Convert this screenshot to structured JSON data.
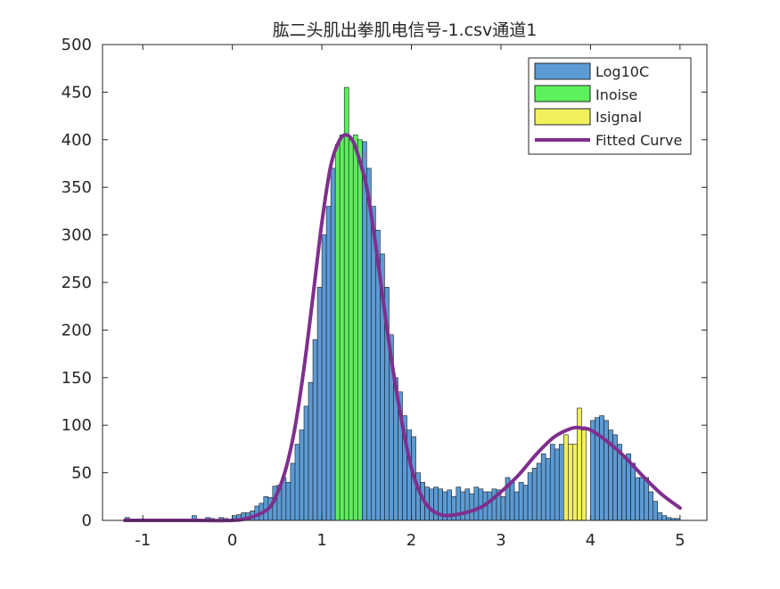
{
  "chart_data": {
    "type": "bar",
    "title": "肱二头肌出拳肌电信号-1.csv通道1",
    "xlabel": "",
    "ylabel": "",
    "xlim": [
      -1.45,
      5.3
    ],
    "ylim": [
      0,
      500
    ],
    "xticks": [
      -1,
      0,
      1,
      2,
      3,
      4,
      5
    ],
    "yticks": [
      0,
      50,
      100,
      150,
      200,
      250,
      300,
      350,
      400,
      450,
      500
    ],
    "grid": false,
    "legend_position": "top-right",
    "bin_width": 0.05,
    "series": [
      {
        "name": "Log10C",
        "color": "#5b9bd5",
        "x": [
          -1.2,
          -0.45,
          -0.3,
          -0.25,
          -0.15,
          -0.1,
          0.0,
          0.05,
          0.1,
          0.15,
          0.2,
          0.25,
          0.3,
          0.35,
          0.4,
          0.45,
          0.5,
          0.55,
          0.6,
          0.65,
          0.7,
          0.75,
          0.8,
          0.85,
          0.9,
          0.95,
          1.0,
          1.05,
          1.1,
          1.45,
          1.5,
          1.55,
          1.6,
          1.65,
          1.7,
          1.75,
          1.8,
          1.85,
          1.9,
          1.95,
          2.0,
          2.05,
          2.1,
          2.15,
          2.2,
          2.25,
          2.3,
          2.35,
          2.4,
          2.45,
          2.5,
          2.55,
          2.6,
          2.65,
          2.7,
          2.75,
          2.8,
          2.85,
          2.9,
          2.95,
          3.0,
          3.05,
          3.1,
          3.15,
          3.2,
          3.25,
          3.3,
          3.35,
          3.4,
          3.45,
          3.5,
          3.55,
          3.6,
          3.65,
          4.0,
          4.05,
          4.1,
          4.15,
          4.2,
          4.25,
          4.3,
          4.35,
          4.4,
          4.45,
          4.5,
          4.55,
          4.6,
          4.65,
          4.7,
          4.75,
          4.8,
          4.85,
          4.9,
          4.95
        ],
        "values": [
          3,
          5,
          3,
          2,
          3,
          2,
          5,
          6,
          8,
          8,
          10,
          15,
          18,
          25,
          24,
          36,
          37,
          45,
          40,
          60,
          80,
          95,
          120,
          145,
          190,
          245,
          300,
          330,
          370,
          398,
          370,
          330,
          305,
          280,
          245,
          195,
          150,
          135,
          110,
          95,
          88,
          50,
          40,
          35,
          33,
          35,
          33,
          30,
          32,
          25,
          35,
          30,
          33,
          28,
          35,
          33,
          30,
          30,
          33,
          32,
          25,
          45,
          40,
          30,
          40,
          37,
          50,
          55,
          60,
          70,
          65,
          80,
          75,
          80,
          105,
          108,
          110,
          105,
          95,
          90,
          80,
          65,
          70,
          60,
          45,
          45,
          45,
          30,
          20,
          8,
          5,
          3,
          2,
          2
        ]
      },
      {
        "name": "Inoise",
        "color": "#5cf05c",
        "x": [
          1.15,
          1.2,
          1.25,
          1.3,
          1.35,
          1.4
        ],
        "values": [
          395,
          405,
          455,
          400,
          405,
          400
        ]
      },
      {
        "name": "Isignal",
        "color": "#f0f05c",
        "x": [
          3.7,
          3.75,
          3.8,
          3.85,
          3.9
        ],
        "values": [
          90,
          80,
          80,
          118,
          95
        ]
      },
      {
        "name": "Fitted Curve",
        "type": "line",
        "color": "#7e2f8e",
        "x": [
          -1.2,
          -0.8,
          -0.4,
          0.0,
          0.2,
          0.4,
          0.5,
          0.6,
          0.7,
          0.8,
          0.9,
          1.0,
          1.1,
          1.2,
          1.28,
          1.35,
          1.4,
          1.5,
          1.6,
          1.7,
          1.8,
          1.9,
          2.0,
          2.1,
          2.2,
          2.3,
          2.4,
          2.6,
          2.8,
          3.0,
          3.2,
          3.4,
          3.6,
          3.8,
          3.9,
          4.0,
          4.2,
          4.4,
          4.6,
          4.8,
          5.0
        ],
        "values": [
          0,
          0,
          0,
          0,
          3,
          12,
          28,
          55,
          98,
          160,
          235,
          313,
          373,
          400,
          405,
          398,
          385,
          350,
          290,
          220,
          155,
          100,
          55,
          28,
          13,
          7,
          5,
          8,
          15,
          30,
          48,
          70,
          88,
          97,
          97,
          95,
          82,
          65,
          45,
          27,
          13
        ]
      }
    ]
  }
}
